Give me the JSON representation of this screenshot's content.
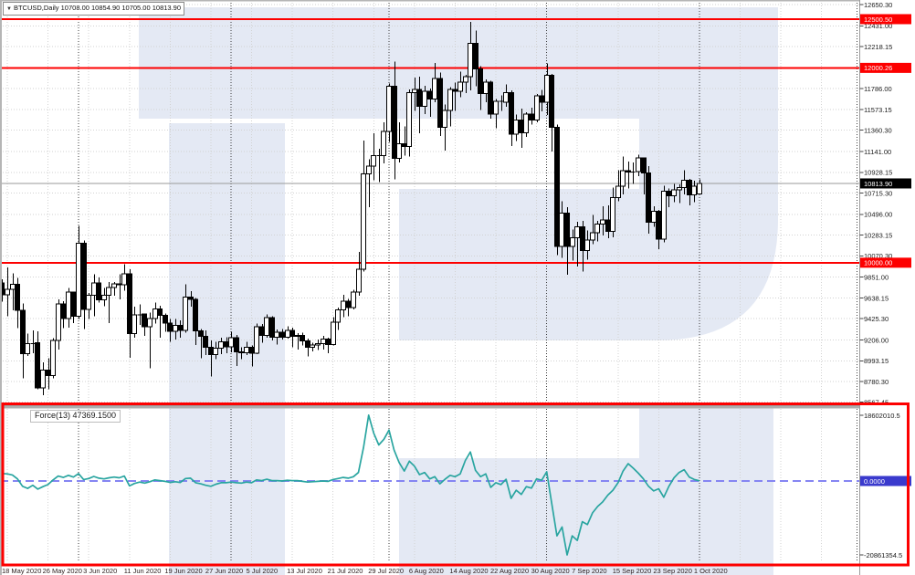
{
  "quote_box": {
    "dropdown_glyph": "▼",
    "symbol": "BTCUSD,Daily",
    "ohlc": "10708.00 10854.90 10705.00 10813.90"
  },
  "indicator_panel": {
    "label": "Force(13) 47369.1500",
    "scale_max_label": "18602010.5",
    "scale_min_label": "-20861354.5",
    "zero_label": "0.0000"
  },
  "price_axis": {
    "ticks": [
      {
        "label": "12650.30",
        "price": 12650.3
      },
      {
        "label": "12431.00",
        "price": 12431.0
      },
      {
        "label": "12218.15",
        "price": 12218.15
      },
      {
        "label": "11786.00",
        "price": 11786.0
      },
      {
        "label": "11573.15",
        "price": 11573.15
      },
      {
        "label": "11360.30",
        "price": 11360.3
      },
      {
        "label": "11141.00",
        "price": 11141.0
      },
      {
        "label": "10928.15",
        "price": 10928.15
      },
      {
        "label": "10715.30",
        "price": 10715.3
      },
      {
        "label": "10496.00",
        "price": 10496.0
      },
      {
        "label": "10283.15",
        "price": 10283.15
      },
      {
        "label": "10070.30",
        "price": 10070.3
      },
      {
        "label": "9851.00",
        "price": 9851.0
      },
      {
        "label": "9638.15",
        "price": 9638.15
      },
      {
        "label": "9425.30",
        "price": 9425.3
      },
      {
        "label": "9206.00",
        "price": 9206.0
      },
      {
        "label": "8993.15",
        "price": 8993.15
      },
      {
        "label": "8780.30",
        "price": 8780.3
      },
      {
        "label": "8567.45",
        "price": 8567.45
      }
    ],
    "level_labels": [
      {
        "label": "12500.50",
        "price": 12500.5
      },
      {
        "label": "12000.26",
        "price": 12000.26
      },
      {
        "label": "10000.00",
        "price": 10000.0
      }
    ],
    "current_price": {
      "label": "10813.90",
      "price": 10813.9
    }
  },
  "time_axis": {
    "labels": [
      {
        "text": "18 May 2020",
        "day": 0
      },
      {
        "text": "26 May 2020",
        "day": 8
      },
      {
        "text": "3 Jun 2020",
        "day": 16
      },
      {
        "text": "11 Jun 2020",
        "day": 24
      },
      {
        "text": "19 Jun 2020",
        "day": 32
      },
      {
        "text": "27 Jun 2020",
        "day": 40
      },
      {
        "text": "5 Jul 2020",
        "day": 48
      },
      {
        "text": "13 Jul 2020",
        "day": 56
      },
      {
        "text": "21 Jul 2020",
        "day": 64
      },
      {
        "text": "29 Jul 2020",
        "day": 72
      },
      {
        "text": "6 Aug 2020",
        "day": 80
      },
      {
        "text": "14 Aug 2020",
        "day": 88
      },
      {
        "text": "22 Aug 2020",
        "day": 96
      },
      {
        "text": "30 Aug 2020",
        "day": 104
      },
      {
        "text": "7 Sep 2020",
        "day": 112
      },
      {
        "text": "15 Sep 2020",
        "day": 120
      },
      {
        "text": "23 Sep 2020",
        "day": 128
      },
      {
        "text": "1 Oct 2020",
        "day": 136
      }
    ]
  },
  "chart_data": {
    "type": "candlestick",
    "symbol": "BTCUSD",
    "timeframe": "Daily",
    "start_date": "2020-05-18",
    "end_date": "2020-10-01",
    "last_bar_ohlc": [
      10708.0,
      10854.9,
      10705.0,
      10813.9
    ],
    "horizontal_lines": [
      12500.5,
      12000.26,
      10000.0
    ],
    "grid_prices": [
      12650.3,
      12431.0,
      12218.15,
      12005.3,
      11786.0,
      11573.15,
      11360.3,
      11141.0,
      10928.15,
      10715.3,
      10496.0,
      10283.15,
      10070.3,
      9851.0,
      9638.15,
      9425.3,
      9206.0,
      8993.15,
      8780.3,
      8567.45
    ],
    "month_start_days": [
      14,
      44,
      75,
      106,
      136,
      167
    ],
    "prev_candle": [
      9790,
      9830,
      9600,
      9670
    ],
    "candles_ohlc": [
      [
        9670,
        9950,
        9450,
        9729
      ],
      [
        9729,
        9890,
        9510,
        9778
      ],
      [
        9778,
        9842,
        9330,
        9511
      ],
      [
        9511,
        9580,
        8815,
        9068
      ],
      [
        9068,
        9271,
        9041,
        9170
      ],
      [
        9170,
        9307,
        9070,
        9179
      ],
      [
        9179,
        9298,
        8700,
        8715
      ],
      [
        8715,
        8979,
        8642,
        8899
      ],
      [
        8899,
        9017,
        8700,
        8841
      ],
      [
        8841,
        9225,
        8811,
        9204
      ],
      [
        9204,
        9625,
        9110,
        9575
      ],
      [
        9575,
        9605,
        9330,
        9427
      ],
      [
        9427,
        9740,
        9331,
        9697
      ],
      [
        9697,
        9700,
        9381,
        9448
      ],
      [
        9448,
        10380,
        9421,
        10200
      ],
      [
        10200,
        10229,
        9320,
        9521
      ],
      [
        9521,
        9690,
        9420,
        9666
      ],
      [
        9666,
        9881,
        9450,
        9790
      ],
      [
        9790,
        9850,
        9590,
        9620
      ],
      [
        9620,
        9740,
        9555,
        9666
      ],
      [
        9666,
        9802,
        9382,
        9746
      ],
      [
        9746,
        9800,
        9660,
        9783
      ],
      [
        9783,
        9880,
        9625,
        9772
      ],
      [
        9772,
        9984,
        9712,
        9884
      ],
      [
        9884,
        9933,
        9023,
        9271
      ],
      [
        9271,
        9550,
        9230,
        9465
      ],
      [
        9465,
        9570,
        9360,
        9473
      ],
      [
        9473,
        9480,
        9250,
        9342
      ],
      [
        9342,
        9490,
        8915,
        9426
      ],
      [
        9426,
        9590,
        9376,
        9526
      ],
      [
        9526,
        9560,
        9230,
        9461
      ],
      [
        9461,
        9480,
        9290,
        9382
      ],
      [
        9382,
        9420,
        9190,
        9296
      ],
      [
        9296,
        9420,
        9210,
        9357
      ],
      [
        9357,
        9410,
        9230,
        9303
      ],
      [
        9303,
        9780,
        9280,
        9648
      ],
      [
        9648,
        9710,
        9550,
        9626
      ],
      [
        9626,
        9640,
        9155,
        9302
      ],
      [
        9302,
        9320,
        9020,
        9246
      ],
      [
        9246,
        9305,
        9050,
        9134
      ],
      [
        9134,
        9200,
        8830,
        9056
      ],
      [
        9056,
        9190,
        9010,
        9123
      ],
      [
        9123,
        9230,
        9060,
        9190
      ],
      [
        9190,
        9235,
        9070,
        9138
      ],
      [
        9138,
        9290,
        9080,
        9232
      ],
      [
        9232,
        9260,
        8940,
        9086
      ],
      [
        9086,
        9130,
        9010,
        9074
      ],
      [
        9074,
        9190,
        9050,
        9133
      ],
      [
        9133,
        9150,
        8935,
        9073
      ],
      [
        9073,
        9375,
        9060,
        9344
      ],
      [
        9344,
        9370,
        9180,
        9252
      ],
      [
        9252,
        9470,
        9230,
        9436
      ],
      [
        9436,
        9450,
        9200,
        9235
      ],
      [
        9235,
        9315,
        9160,
        9287
      ],
      [
        9287,
        9320,
        9210,
        9233
      ],
      [
        9233,
        9345,
        9220,
        9303
      ],
      [
        9303,
        9335,
        9130,
        9242
      ],
      [
        9242,
        9275,
        9110,
        9255
      ],
      [
        9255,
        9280,
        9150,
        9197
      ],
      [
        9197,
        9220,
        9040,
        9133
      ],
      [
        9133,
        9180,
        9090,
        9155
      ],
      [
        9155,
        9210,
        9105,
        9170
      ],
      [
        9170,
        9250,
        9110,
        9215
      ],
      [
        9215,
        9230,
        9070,
        9162
      ],
      [
        9162,
        9440,
        9150,
        9390
      ],
      [
        9390,
        9540,
        9310,
        9518
      ],
      [
        9518,
        9670,
        9440,
        9603
      ],
      [
        9603,
        9630,
        9450,
        9537
      ],
      [
        9537,
        9720,
        9520,
        9700
      ],
      [
        9700,
        10110,
        9660,
        9931
      ],
      [
        9931,
        11255,
        9910,
        10912
      ],
      [
        10912,
        11060,
        10570,
        10990
      ],
      [
        10990,
        11330,
        10845,
        11100
      ],
      [
        11100,
        11170,
        10830,
        11100
      ],
      [
        11100,
        11440,
        11020,
        11350
      ],
      [
        11350,
        11840,
        11240,
        11810
      ],
      [
        11810,
        12064,
        10854,
        11071
      ],
      [
        11071,
        11440,
        11030,
        11219
      ],
      [
        11219,
        11400,
        11100,
        11191
      ],
      [
        11191,
        11780,
        11090,
        11747
      ],
      [
        11747,
        11900,
        11560,
        11779
      ],
      [
        11779,
        11910,
        11330,
        11605
      ],
      [
        11605,
        11815,
        11524,
        11761
      ],
      [
        11761,
        11790,
        11500,
        11681
      ],
      [
        11681,
        12050,
        11650,
        11892
      ],
      [
        11892,
        11950,
        11300,
        11392
      ],
      [
        11392,
        11625,
        11150,
        11564
      ],
      [
        11564,
        11800,
        11400,
        11780
      ],
      [
        11780,
        11850,
        11560,
        11760
      ],
      [
        11760,
        11960,
        11700,
        11852
      ],
      [
        11852,
        11930,
        11740,
        11911
      ],
      [
        11911,
        12473,
        11770,
        12254
      ],
      [
        12254,
        12385,
        11810,
        11991
      ],
      [
        11991,
        12020,
        11570,
        11737
      ],
      [
        11737,
        11880,
        11650,
        11852
      ],
      [
        11852,
        11870,
        11480,
        11527
      ],
      [
        11527,
        11680,
        11380,
        11658
      ],
      [
        11658,
        11720,
        11560,
        11649
      ],
      [
        11649,
        11830,
        11600,
        11747
      ],
      [
        11747,
        11770,
        11200,
        11322
      ],
      [
        11322,
        11520,
        11250,
        11465
      ],
      [
        11465,
        11580,
        11180,
        11336
      ],
      [
        11336,
        11545,
        11290,
        11528
      ],
      [
        11528,
        11590,
        11420,
        11463
      ],
      [
        11463,
        11730,
        11440,
        11711
      ],
      [
        11711,
        11775,
        11555,
        11649
      ],
      [
        11649,
        12045,
        11515,
        11924
      ],
      [
        11924,
        11940,
        11140,
        11388
      ],
      [
        11388,
        11420,
        10080,
        10169
      ],
      [
        10169,
        10630,
        10050,
        10511
      ],
      [
        10511,
        10570,
        9875,
        10169
      ],
      [
        10169,
        10340,
        10020,
        10258
      ],
      [
        10258,
        10420,
        9960,
        10368
      ],
      [
        10368,
        10430,
        9910,
        10126
      ],
      [
        10126,
        10330,
        10030,
        10232
      ],
      [
        10232,
        10490,
        10190,
        10308
      ],
      [
        10308,
        10430,
        10220,
        10395
      ],
      [
        10395,
        10580,
        10280,
        10441
      ],
      [
        10441,
        10590,
        10250,
        10323
      ],
      [
        10323,
        10770,
        10260,
        10668
      ],
      [
        10668,
        10950,
        10630,
        10784
      ],
      [
        10784,
        11090,
        10700,
        10947
      ],
      [
        10947,
        11040,
        10760,
        10933
      ],
      [
        10933,
        11030,
        10810,
        10936
      ],
      [
        10936,
        11110,
        10890,
        11077
      ],
      [
        11077,
        11080,
        10700,
        10920
      ],
      [
        10920,
        10990,
        10300,
        10417
      ],
      [
        10417,
        10580,
        10370,
        10529
      ],
      [
        10529,
        10540,
        10140,
        10241
      ],
      [
        10241,
        10790,
        10210,
        10736
      ],
      [
        10736,
        10760,
        10570,
        10685
      ],
      [
        10685,
        10810,
        10620,
        10748
      ],
      [
        10748,
        10805,
        10610,
        10771
      ],
      [
        10771,
        10950,
        10700,
        10846
      ],
      [
        10846,
        10860,
        10590,
        10695
      ],
      [
        10695,
        10840,
        10620,
        10784
      ],
      [
        10708,
        10854.9,
        10705,
        10813.9
      ]
    ],
    "force_index_name": "Force(13)",
    "force_last_value": 47369.15,
    "force_values_millions": [
      2.0,
      1.7,
      0.6,
      -1.5,
      -2.1,
      -1.2,
      -2.3,
      -1.6,
      -1.0,
      0.3,
      1.4,
      1.0,
      1.6,
      1.1,
      2.1,
      0.4,
      0.7,
      1.3,
      0.8,
      0.6,
      0.9,
      1.1,
      0.9,
      1.4,
      -1.4,
      -0.7,
      -0.3,
      -0.6,
      -0.2,
      0.3,
      0.1,
      -0.1,
      -0.4,
      -0.2,
      -0.4,
      0.7,
      0.8,
      -0.5,
      -0.8,
      -1.2,
      -1.5,
      -0.9,
      -0.5,
      -0.5,
      -0.3,
      -0.5,
      -0.6,
      -0.3,
      -0.5,
      0.3,
      0.1,
      0.5,
      0.1,
      0.1,
      0.0,
      0.2,
      0.1,
      0.1,
      -0.1,
      -0.3,
      -0.2,
      -0.1,
      0.0,
      -0.1,
      0.4,
      0.7,
      1.0,
      0.8,
      1.2,
      2.4,
      9.5,
      18.6,
      13.5,
      10.2,
      11.8,
      14.4,
      8.8,
      5.2,
      2.8,
      5.6,
      4.2,
      1.8,
      2.4,
      0.6,
      1.2,
      -0.8,
      0.5,
      1.6,
      1.2,
      2.0,
      5.8,
      8.2,
      3.0,
      1.2,
      2.0,
      -1.8,
      -0.5,
      -1.0,
      0.5,
      -4.9,
      -2.6,
      -3.8,
      -1.6,
      -2.0,
      0.6,
      0.2,
      2.6,
      -6.5,
      -15.5,
      -13.0,
      -20.9,
      -15.5,
      -16.8,
      -11.5,
      -12.3,
      -9.0,
      -7.2,
      -5.9,
      -4.0,
      -2.6,
      -0.5,
      2.8,
      4.9,
      3.6,
      2.2,
      0.6,
      -1.5,
      -2.8,
      -2.2,
      -4.6,
      -1.5,
      0.9,
      2.4,
      3.2,
      1.1,
      0.4,
      0.047369
    ]
  },
  "colors": {
    "bull": "#ffffff",
    "bear": "#000000",
    "outline": "#000000",
    "grid": "#d2d2d2",
    "month_grid": "#3c3c3c",
    "red_line": "#fd0000",
    "teal_line": "#29a5a0",
    "zero_dash": "#8585f2",
    "zero_label_bg": "#3a3acd",
    "current_label_bg": "#000000",
    "axis_text": "#1a1a1a",
    "watermark": "#e4e9f4",
    "divider": "#aeaeae",
    "chrome": "#b5b5b5"
  }
}
